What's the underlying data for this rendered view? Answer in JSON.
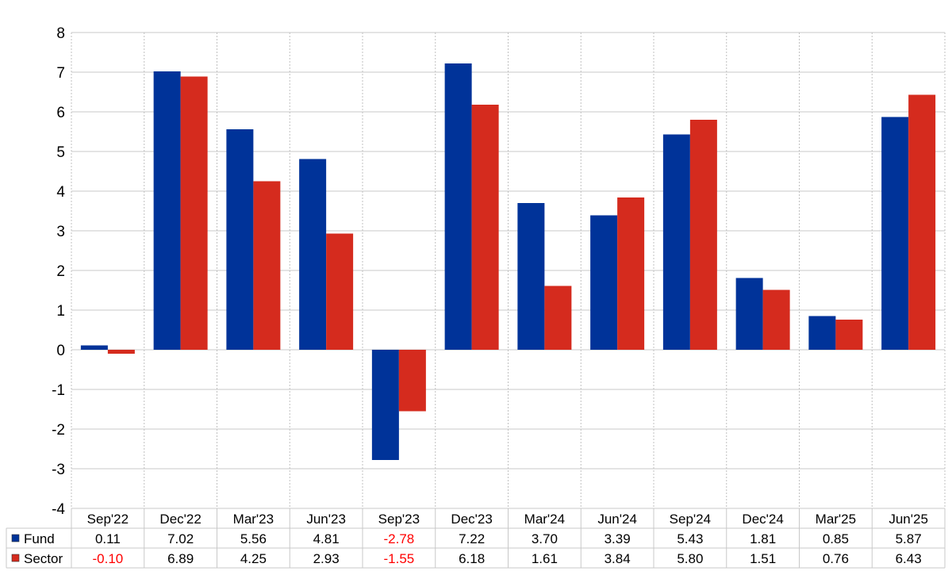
{
  "chart_data": {
    "type": "bar",
    "categories": [
      "Sep'22",
      "Dec'22",
      "Mar'23",
      "Jun'23",
      "Sep'23",
      "Dec'23",
      "Mar'24",
      "Jun'24",
      "Sep'24",
      "Dec'24",
      "Mar'25",
      "Jun'25"
    ],
    "series": [
      {
        "name": "Fund",
        "color": "#003399",
        "values": [
          0.11,
          7.02,
          5.56,
          4.81,
          -2.78,
          7.22,
          3.7,
          3.39,
          5.43,
          1.81,
          0.85,
          5.87
        ],
        "labels": [
          "0.11",
          "7.02",
          "5.56",
          "4.81",
          "-2.78",
          "7.22",
          "3.70",
          "3.39",
          "5.43",
          "1.81",
          "0.85",
          "5.87"
        ]
      },
      {
        "name": "Sector",
        "color": "#d52b1e",
        "values": [
          -0.1,
          6.89,
          4.25,
          2.93,
          -1.55,
          6.18,
          1.61,
          3.84,
          5.8,
          1.51,
          0.76,
          6.43
        ],
        "labels": [
          "-0.10",
          "6.89",
          "4.25",
          "2.93",
          "-1.55",
          "6.18",
          "1.61",
          "3.84",
          "5.80",
          "1.51",
          "0.76",
          "6.43"
        ]
      }
    ],
    "ylim": [
      -4,
      8
    ],
    "yticks": [
      "-4",
      "-3",
      "-2",
      "-1",
      "0",
      "1",
      "2",
      "3",
      "4",
      "5",
      "6",
      "7",
      "8"
    ],
    "negative_label_color": "#ff0000",
    "grid": true,
    "legend": "data-table-left",
    "title": "",
    "xlabel": "",
    "ylabel": ""
  }
}
